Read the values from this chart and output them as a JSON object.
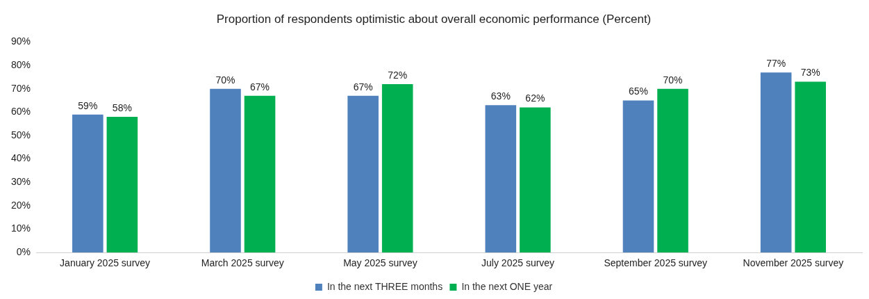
{
  "chart_data": {
    "type": "bar",
    "title": "Proportion of respondents optimistic about overall economic performance (Percent)",
    "categories": [
      "January 2025 survey",
      "March 2025 survey",
      "May 2025 survey",
      "July 2025 survey",
      "September 2025 survey",
      "November 2025 survey"
    ],
    "series": [
      {
        "name": "In the next THREE months",
        "color": "#4f81bd",
        "values": [
          59,
          70,
          67,
          63,
          65,
          77
        ],
        "value_labels": [
          "59%",
          "70%",
          "67%",
          "63%",
          "65%",
          "77%"
        ]
      },
      {
        "name": "In the next ONE year",
        "color": "#00b050",
        "values": [
          58,
          67,
          72,
          62,
          70,
          73
        ],
        "value_labels": [
          "58%",
          "67%",
          "72%",
          "62%",
          "70%",
          "73%"
        ]
      }
    ],
    "ylim": [
      0,
      90
    ],
    "yticks": [
      {
        "value": 0,
        "label": "0%"
      },
      {
        "value": 10,
        "label": "10%"
      },
      {
        "value": 20,
        "label": "20%"
      },
      {
        "value": 30,
        "label": "30%"
      },
      {
        "value": 40,
        "label": "40%"
      },
      {
        "value": 50,
        "label": "50%"
      },
      {
        "value": 60,
        "label": "60%"
      },
      {
        "value": 70,
        "label": "70%"
      },
      {
        "value": 80,
        "label": "80%"
      },
      {
        "value": 90,
        "label": "90%"
      }
    ],
    "grid": false,
    "legend": "bottom"
  }
}
